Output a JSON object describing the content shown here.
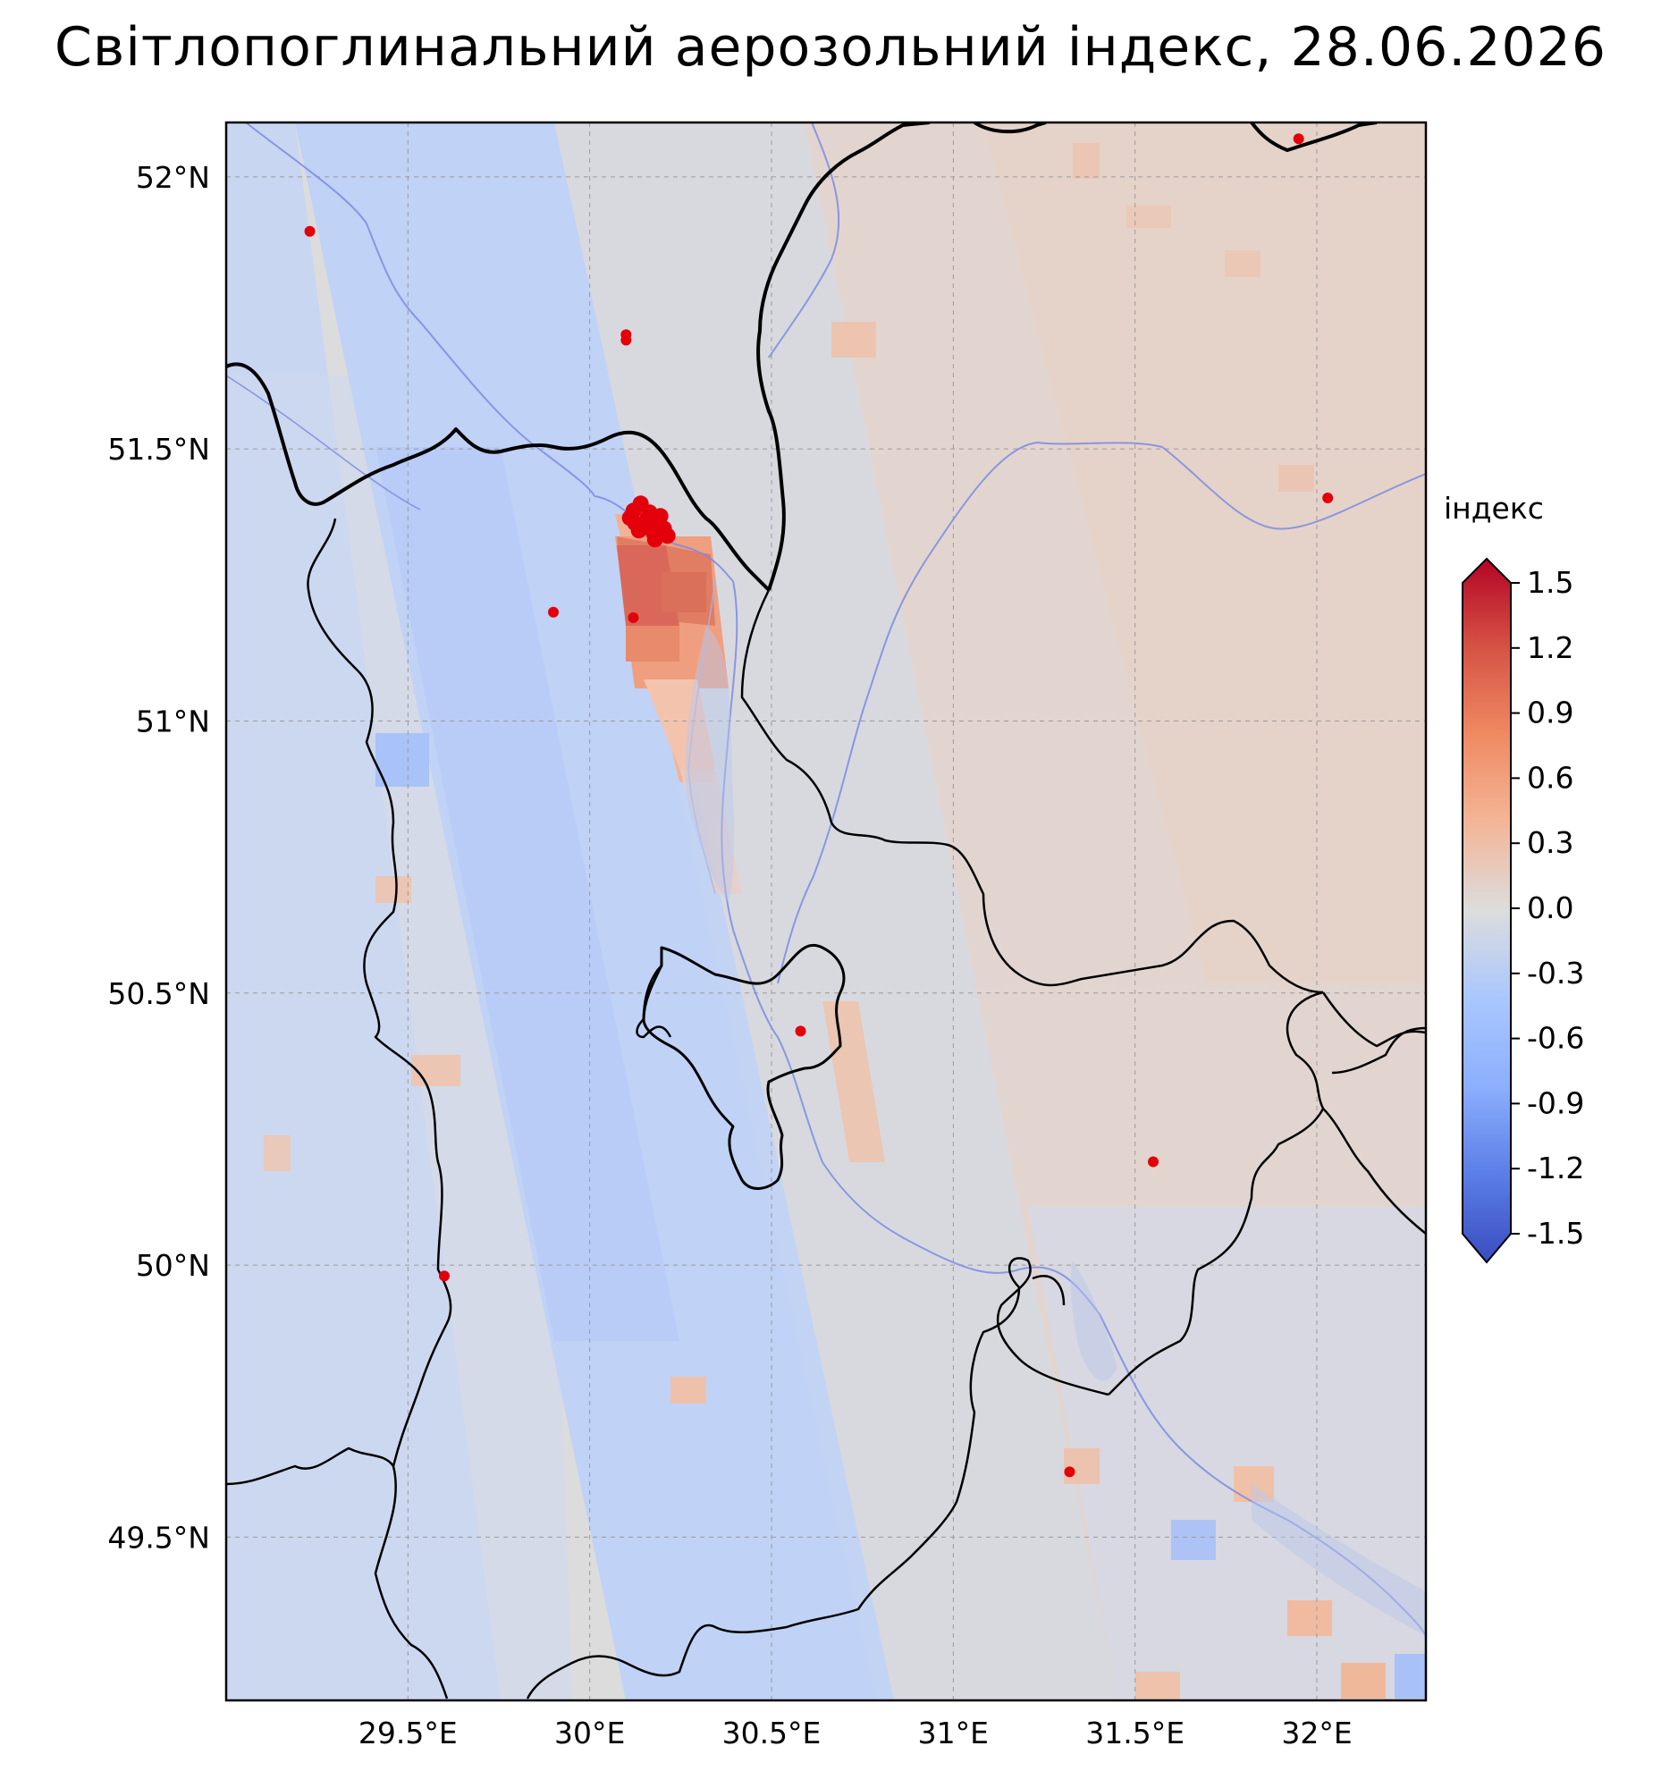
{
  "title": "Світлопоглинальний аерозольний індекс, 28.06.2026",
  "map": {
    "lon_range": [
      29.0,
      32.3
    ],
    "lat_range": [
      49.2,
      52.1
    ],
    "lat_ticks": [
      {
        "value": 52.0,
        "label": "52°N"
      },
      {
        "value": 51.5,
        "label": "51.5°N"
      },
      {
        "value": 51.0,
        "label": "51°N"
      },
      {
        "value": 50.5,
        "label": "50.5°N"
      },
      {
        "value": 50.0,
        "label": "50°N"
      },
      {
        "value": 49.5,
        "label": "49.5°N"
      }
    ],
    "lon_ticks": [
      {
        "value": 29.5,
        "label": "29.5°E"
      },
      {
        "value": 30.0,
        "label": "30°E"
      },
      {
        "value": 30.5,
        "label": "30.5°E"
      },
      {
        "value": 31.0,
        "label": "31°E"
      },
      {
        "value": 31.5,
        "label": "31.5°E"
      },
      {
        "value": 32.0,
        "label": "32°E"
      }
    ],
    "gridlines": true,
    "fire_points": [
      {
        "lon": 29.23,
        "lat": 51.9
      },
      {
        "lon": 30.1,
        "lat": 51.71
      },
      {
        "lon": 30.1,
        "lat": 51.7
      },
      {
        "lon": 29.9,
        "lat": 51.2
      },
      {
        "lon": 30.12,
        "lat": 51.19
      },
      {
        "lon": 30.58,
        "lat": 50.43
      },
      {
        "lon": 29.6,
        "lat": 49.98
      },
      {
        "lon": 31.55,
        "lat": 50.19
      },
      {
        "lon": 31.32,
        "lat": 49.62
      },
      {
        "lon": 31.95,
        "lat": 52.07
      },
      {
        "lon": 32.03,
        "lat": 51.41
      }
    ],
    "fire_cluster": {
      "lon": 30.15,
      "lat": 51.37
    },
    "colors": {
      "fire": "#e3000b",
      "border": "#000000",
      "river": "#7d8be0"
    }
  },
  "colorbar": {
    "label": "індекс",
    "ticks": [
      "1.5",
      "1.2",
      "0.9",
      "0.6",
      "0.3",
      "0.0",
      "-0.3",
      "-0.6",
      "-0.9",
      "-1.2",
      "-1.5"
    ],
    "range": [
      -1.5,
      1.5
    ],
    "colormap": "coolwarm"
  }
}
